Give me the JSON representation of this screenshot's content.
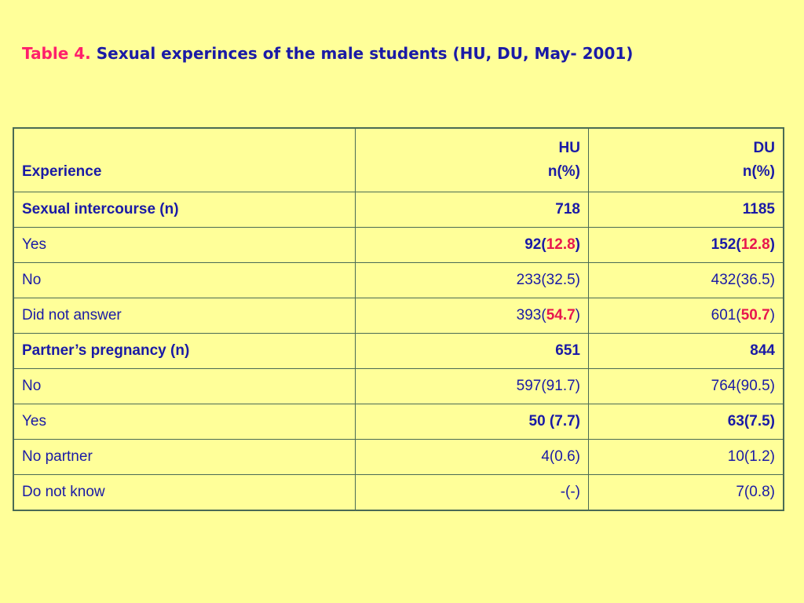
{
  "title": {
    "label": "Table 4.",
    "text": "Sexual experinces of the male students (HU, DU, May- 2001)"
  },
  "table": {
    "header": {
      "experience": "Experience",
      "hu": "HU",
      "du": "DU",
      "unit_hu": "n(%)",
      "unit_du": "n(%)"
    },
    "rows": [
      {
        "label": "Sexual intercourse (n)",
        "hu": "718",
        "du": "1185"
      },
      {
        "label": "Yes",
        "hu_n": "92(",
        "hu_pct": "12.8",
        "hu_close": ")",
        "du_n": "152(",
        "du_pct": "12.8",
        "du_close": ")"
      },
      {
        "label": "No",
        "hu": "233(32.5)",
        "du": "432(36.5)"
      },
      {
        "label": "Did not answer",
        "hu_n": "393(",
        "hu_pct": "54.7",
        "hu_close": ")",
        "du_n": "601(",
        "du_pct": "50.7",
        "du_close": ")"
      },
      {
        "label": "Partner’s pregnancy (n)",
        "hu": "651",
        "du": "844"
      },
      {
        "label": "No",
        "hu": "597(91.7)",
        "du": "764(90.5)"
      },
      {
        "label": "Yes",
        "hu": "50 (7.7)",
        "du": "63(7.5)"
      },
      {
        "label": "No partner",
        "hu": "4(0.6)",
        "du": "10(1.2)"
      },
      {
        "label": "Do not know",
        "hu": "-(-)",
        "du": "7(0.8)"
      }
    ]
  },
  "colors": {
    "background": "#ffff99",
    "text": "#1a1aa6",
    "accent": "#ff1f6b",
    "highlight": "#e8174e",
    "border": "#4a6b55"
  }
}
